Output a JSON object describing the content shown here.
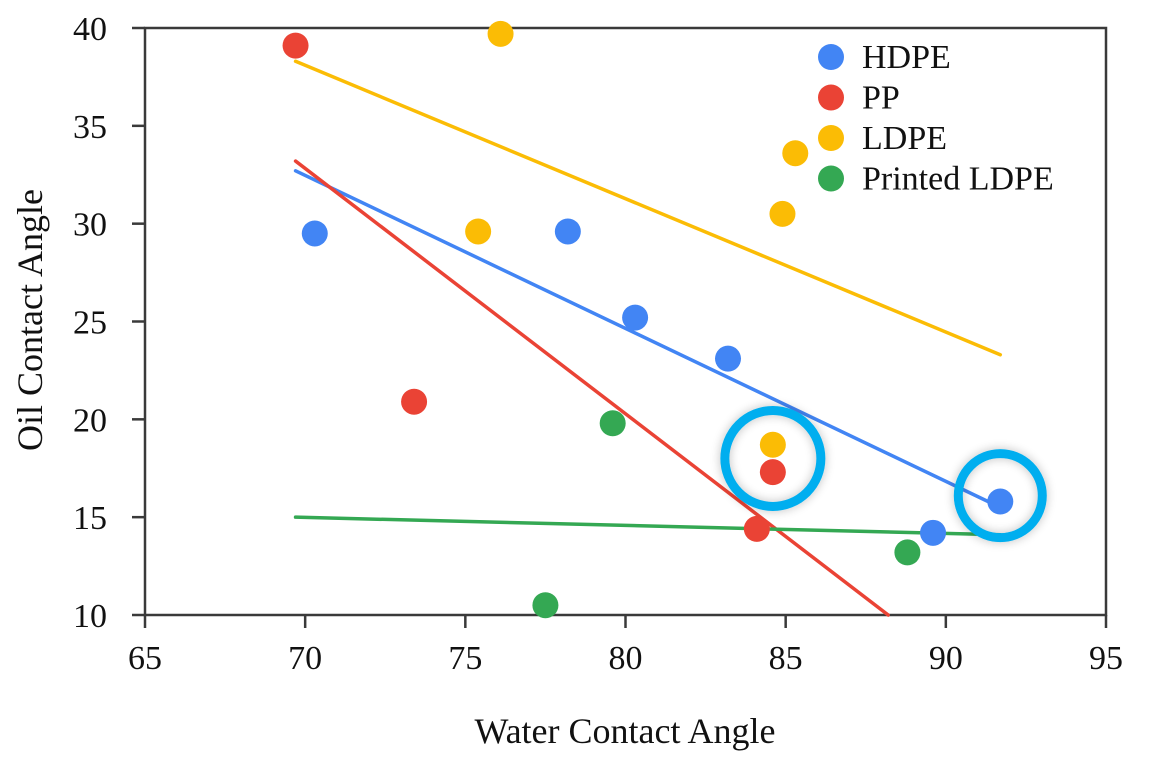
{
  "chart_data": {
    "type": "scatter",
    "title": "",
    "xlabel": "Water Contact Angle",
    "ylabel": "Oil Contact Angle",
    "xlim": [
      65,
      95
    ],
    "ylim": [
      10,
      40
    ],
    "xticks": [
      65,
      70,
      75,
      80,
      85,
      90,
      95
    ],
    "yticks": [
      10,
      15,
      20,
      25,
      30,
      35,
      40
    ],
    "grid": false,
    "legend_position": "top-right",
    "series": [
      {
        "name": "HDPE",
        "color": "#4285F4",
        "points": [
          {
            "x": 70.3,
            "y": 29.5
          },
          {
            "x": 78.2,
            "y": 29.6
          },
          {
            "x": 80.3,
            "y": 25.2
          },
          {
            "x": 83.2,
            "y": 23.1
          },
          {
            "x": 89.6,
            "y": 14.2
          },
          {
            "x": 91.7,
            "y": 15.8
          }
        ],
        "trendline": {
          "x": [
            69.7,
            91.7
          ],
          "y": [
            32.7,
            15.5
          ]
        }
      },
      {
        "name": "PP",
        "color": "#EA4335",
        "points": [
          {
            "x": 69.7,
            "y": 39.1
          },
          {
            "x": 73.4,
            "y": 20.9
          },
          {
            "x": 84.6,
            "y": 17.3
          },
          {
            "x": 84.1,
            "y": 14.4
          }
        ],
        "trendline": {
          "x": [
            69.7,
            88.2
          ],
          "y": [
            33.2,
            10.0
          ]
        }
      },
      {
        "name": "LDPE",
        "color": "#FBBC05",
        "points": [
          {
            "x": 76.1,
            "y": 39.7
          },
          {
            "x": 75.4,
            "y": 29.6
          },
          {
            "x": 84.9,
            "y": 30.5
          },
          {
            "x": 85.3,
            "y": 33.6
          },
          {
            "x": 84.6,
            "y": 18.7
          }
        ],
        "trendline": {
          "x": [
            69.7,
            91.7
          ],
          "y": [
            38.3,
            23.3
          ]
        }
      },
      {
        "name": "Printed LDPE",
        "color": "#34A853",
        "points": [
          {
            "x": 79.6,
            "y": 19.8
          },
          {
            "x": 77.5,
            "y": 10.5
          },
          {
            "x": 88.8,
            "y": 13.2
          }
        ],
        "trendline": {
          "x": [
            69.7,
            91.7
          ],
          "y": [
            15.0,
            14.1
          ]
        }
      }
    ],
    "annotations": [
      {
        "type": "circle-highlight",
        "color": "#00AEEF",
        "center": {
          "x": 84.6,
          "y": 18.0
        },
        "description": "highlights LDPE and PP points near x=84.6"
      },
      {
        "type": "circle-highlight",
        "color": "#00AEEF",
        "center": {
          "x": 91.7,
          "y": 16.1
        },
        "description": "highlights HDPE point near x=91.7"
      }
    ]
  }
}
